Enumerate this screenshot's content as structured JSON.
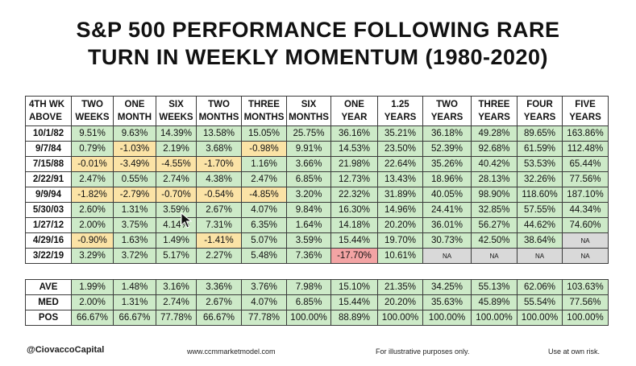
{
  "title_line1": "S&P 500 PERFORMANCE FOLLOWING RARE",
  "title_line2": "TURN IN WEEKLY MOMENTUM (1980-2020)",
  "colors": {
    "positive": "#cdeac8",
    "negative": "#fbe3a6",
    "strong_negative": "#f3a4a4",
    "na": "#d9d9d9"
  },
  "chart_data": {
    "type": "table",
    "title": "S&P 500 PERFORMANCE FOLLOWING RARE TURN IN WEEKLY MOMENTUM (1980-2020)",
    "row_header": [
      "4TH WK",
      "ABOVE"
    ],
    "columns": [
      [
        "TWO",
        "WEEKS"
      ],
      [
        "ONE",
        "MONTH"
      ],
      [
        "SIX",
        "WEEKS"
      ],
      [
        "TWO",
        "MONTHS"
      ],
      [
        "THREE",
        "MONTHS"
      ],
      [
        "SIX",
        "MONTHS"
      ],
      [
        "ONE",
        "YEAR"
      ],
      [
        "1.25",
        "YEARS"
      ],
      [
        "TWO",
        "YEARS"
      ],
      [
        "THREE",
        "YEARS"
      ],
      [
        "FOUR",
        "YEARS"
      ],
      [
        "FIVE",
        "YEARS"
      ]
    ],
    "rows": [
      {
        "date": "10/1/82",
        "values": [
          "9.51%",
          "9.63%",
          "14.39%",
          "13.58%",
          "15.05%",
          "25.75%",
          "36.16%",
          "35.21%",
          "36.18%",
          "49.28%",
          "89.65%",
          "163.86%"
        ]
      },
      {
        "date": "9/7/84",
        "values": [
          "0.79%",
          "-1.03%",
          "2.19%",
          "3.68%",
          "-0.98%",
          "9.91%",
          "14.53%",
          "23.50%",
          "52.39%",
          "92.68%",
          "61.59%",
          "112.48%"
        ]
      },
      {
        "date": "7/15/88",
        "values": [
          "-0.01%",
          "-3.49%",
          "-4.55%",
          "-1.70%",
          "1.16%",
          "3.66%",
          "21.98%",
          "22.64%",
          "35.26%",
          "40.42%",
          "53.53%",
          "65.44%"
        ]
      },
      {
        "date": "2/22/91",
        "values": [
          "2.47%",
          "0.55%",
          "2.74%",
          "4.38%",
          "2.47%",
          "6.85%",
          "12.73%",
          "13.43%",
          "18.96%",
          "28.13%",
          "32.26%",
          "77.56%"
        ]
      },
      {
        "date": "9/9/94",
        "values": [
          "-1.82%",
          "-2.79%",
          "-0.70%",
          "-0.54%",
          "-4.85%",
          "3.20%",
          "22.32%",
          "31.89%",
          "40.05%",
          "98.90%",
          "118.60%",
          "187.10%"
        ]
      },
      {
        "date": "5/30/03",
        "values": [
          "2.60%",
          "1.31%",
          "3.59%",
          "2.67%",
          "4.07%",
          "9.84%",
          "16.30%",
          "14.96%",
          "24.41%",
          "32.85%",
          "57.55%",
          "44.34%"
        ]
      },
      {
        "date": "1/27/12",
        "values": [
          "2.00%",
          "3.75%",
          "4.14%",
          "7.31%",
          "6.35%",
          "1.64%",
          "14.18%",
          "20.20%",
          "36.01%",
          "56.27%",
          "44.62%",
          "74.60%"
        ]
      },
      {
        "date": "4/29/16",
        "values": [
          "-0.90%",
          "1.63%",
          "1.49%",
          "-1.41%",
          "5.07%",
          "3.59%",
          "15.44%",
          "19.70%",
          "30.73%",
          "42.50%",
          "38.64%",
          "NA"
        ]
      },
      {
        "date": "3/22/19",
        "values": [
          "3.29%",
          "3.72%",
          "5.17%",
          "2.27%",
          "5.48%",
          "7.36%",
          "-17.70%",
          "10.61%",
          "NA",
          "NA",
          "NA",
          "NA"
        ]
      }
    ],
    "summary": [
      {
        "label": "AVE",
        "values": [
          "1.99%",
          "1.48%",
          "3.16%",
          "3.36%",
          "3.76%",
          "7.98%",
          "15.10%",
          "21.35%",
          "34.25%",
          "55.13%",
          "62.06%",
          "103.63%"
        ]
      },
      {
        "label": "MED",
        "values": [
          "2.00%",
          "1.31%",
          "2.74%",
          "2.67%",
          "4.07%",
          "6.85%",
          "15.44%",
          "20.20%",
          "35.63%",
          "45.89%",
          "55.54%",
          "77.56%"
        ]
      },
      {
        "label": "POS",
        "values": [
          "66.67%",
          "66.67%",
          "77.78%",
          "66.67%",
          "77.78%",
          "100.00%",
          "88.89%",
          "100.00%",
          "100.00%",
          "100.00%",
          "100.00%",
          "100.00%"
        ]
      }
    ]
  },
  "footer": {
    "brand": "@CiovaccoCapital",
    "site": "www.ccmmarketmodel.com",
    "illustrative": "For illustrative purposes only.",
    "risk": "Use at own risk."
  },
  "icons": {
    "cursor": "mouse-pointer-icon"
  }
}
